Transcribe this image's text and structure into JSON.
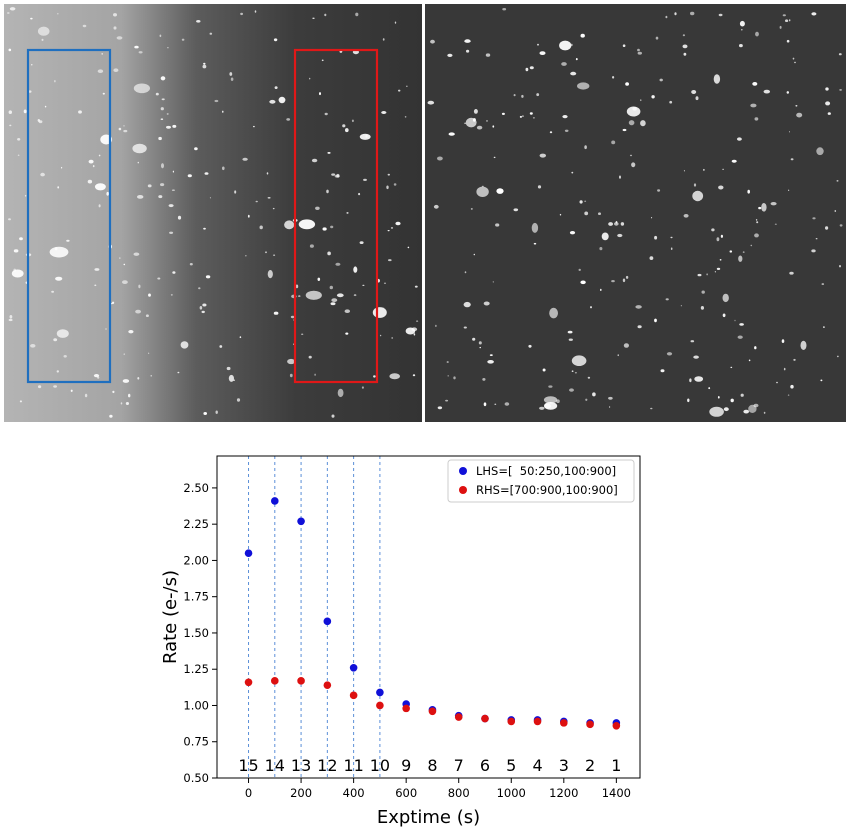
{
  "chart_data": {
    "type": "scatter",
    "xlabel": "Exptime (s)",
    "ylabel": "Rate (e-/s)",
    "xlim": [
      -120,
      1490
    ],
    "ylim": [
      0.5,
      2.72
    ],
    "xticks": [
      0,
      200,
      400,
      600,
      800,
      1000,
      1200,
      1400
    ],
    "yticks": [
      0.5,
      0.75,
      1.0,
      1.25,
      1.5,
      1.75,
      2.0,
      2.25,
      2.5
    ],
    "ytick_labels": [
      "0.50",
      "0.75",
      "1.00",
      "1.25",
      "1.50",
      "1.75",
      "2.00",
      "2.25",
      "2.50"
    ],
    "vlines_dashed": [
      0,
      100,
      200,
      300,
      400,
      500
    ],
    "vline_color": "#5b8fd8",
    "legend_position": "upper right",
    "series": [
      {
        "name": "LHS=[  50:250,100:900]",
        "color": "#1010d8",
        "x": [
          0,
          100,
          200,
          300,
          400,
          500,
          600,
          700,
          800,
          900,
          1000,
          1100,
          1200,
          1300,
          1400
        ],
        "y": [
          2.05,
          2.41,
          2.27,
          1.58,
          1.26,
          1.09,
          1.01,
          0.97,
          0.93,
          0.91,
          0.9,
          0.9,
          0.89,
          0.88,
          0.88
        ]
      },
      {
        "name": "RHS=[700:900,100:900]",
        "color": "#dd1010",
        "x": [
          0,
          100,
          200,
          300,
          400,
          500,
          600,
          700,
          800,
          900,
          1000,
          1100,
          1200,
          1300,
          1400
        ],
        "y": [
          1.16,
          1.17,
          1.17,
          1.14,
          1.07,
          1.0,
          0.98,
          0.96,
          0.92,
          0.91,
          0.89,
          0.89,
          0.88,
          0.87,
          0.86
        ]
      }
    ],
    "point_labels": {
      "x": [
        0,
        100,
        200,
        300,
        400,
        500,
        600,
        700,
        800,
        900,
        1000,
        1100,
        1200,
        1300,
        1400
      ],
      "text": [
        "15",
        "14",
        "13",
        "12",
        "11",
        "10",
        "9",
        "8",
        "7",
        "6",
        "5",
        "4",
        "3",
        "2",
        "1"
      ],
      "y": 0.59
    }
  },
  "images": {
    "left_panel_bg": "#7a7a7a",
    "right_panel_bg": "#3a3a3a",
    "lhs_box_color": "#1f6fbf",
    "rhs_box_color": "#e01818"
  }
}
